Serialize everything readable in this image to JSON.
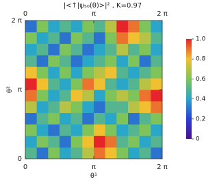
{
  "chart_data": {
    "type": "heatmap",
    "title": "|<↑|ψ₅₀(θ)>|² , K=0.97",
    "xlabel": "θ¹",
    "ylabel": "θ²",
    "xlim": [
      0,
      6.28319
    ],
    "ylim": [
      0,
      6.28319
    ],
    "xticks": [
      0,
      {
        "value": 3.14159,
        "label": "π"
      },
      {
        "value": 6.28319,
        "label": "2 π"
      }
    ],
    "yticks": [
      0,
      {
        "value": 3.14159,
        "label": "π"
      },
      {
        "value": 6.28319,
        "label": "2 π"
      }
    ],
    "clim": [
      0,
      1
    ],
    "cticks": [
      0,
      0.2,
      0.4,
      0.6,
      0.8,
      {
        "value": 1,
        "label": "1.0"
      }
    ],
    "colorscale": [
      "#4b0f8c",
      "#2c3fd6",
      "#2aa6c8",
      "#7fc45a",
      "#f0c030",
      "#e5252a"
    ],
    "z": [
      [
        0.5,
        0.3,
        0.6,
        0.4,
        0.5,
        0.7,
        0.9,
        0.8,
        0.6,
        0.4,
        0.5,
        0.3
      ],
      [
        0.4,
        0.6,
        0.5,
        0.3,
        0.6,
        0.8,
        1.0,
        0.9,
        0.5,
        0.6,
        0.4,
        0.5
      ],
      [
        0.6,
        0.4,
        0.3,
        0.5,
        0.4,
        0.6,
        0.8,
        0.6,
        0.4,
        0.5,
        0.6,
        0.4
      ],
      [
        0.3,
        0.5,
        0.6,
        0.4,
        0.5,
        0.3,
        0.5,
        0.4,
        0.6,
        0.3,
        0.5,
        0.6
      ],
      [
        0.7,
        0.4,
        0.5,
        0.7,
        0.6,
        0.4,
        0.3,
        0.5,
        0.5,
        0.7,
        0.8,
        0.9
      ],
      [
        0.9,
        0.6,
        0.4,
        0.5,
        0.8,
        0.7,
        0.4,
        0.6,
        0.7,
        0.6,
        0.9,
        1.0
      ],
      [
        1.0,
        0.8,
        0.5,
        0.4,
        0.6,
        0.9,
        0.8,
        0.5,
        0.4,
        0.5,
        0.7,
        0.8
      ],
      [
        0.8,
        0.6,
        0.4,
        0.6,
        0.4,
        0.6,
        0.7,
        0.8,
        0.5,
        0.4,
        0.5,
        0.6
      ],
      [
        0.5,
        0.3,
        0.6,
        0.5,
        0.3,
        0.4,
        0.5,
        0.6,
        0.4,
        0.6,
        0.3,
        0.5
      ],
      [
        0.4,
        0.5,
        0.3,
        0.6,
        0.5,
        0.3,
        0.4,
        0.5,
        0.7,
        0.5,
        0.6,
        0.4
      ],
      [
        0.6,
        0.4,
        0.5,
        0.3,
        0.6,
        0.5,
        0.3,
        0.6,
        0.9,
        0.8,
        0.7,
        0.5
      ],
      [
        0.3,
        0.6,
        0.4,
        0.5,
        0.4,
        0.6,
        0.5,
        0.7,
        1.0,
        0.9,
        0.6,
        0.4
      ]
    ]
  }
}
